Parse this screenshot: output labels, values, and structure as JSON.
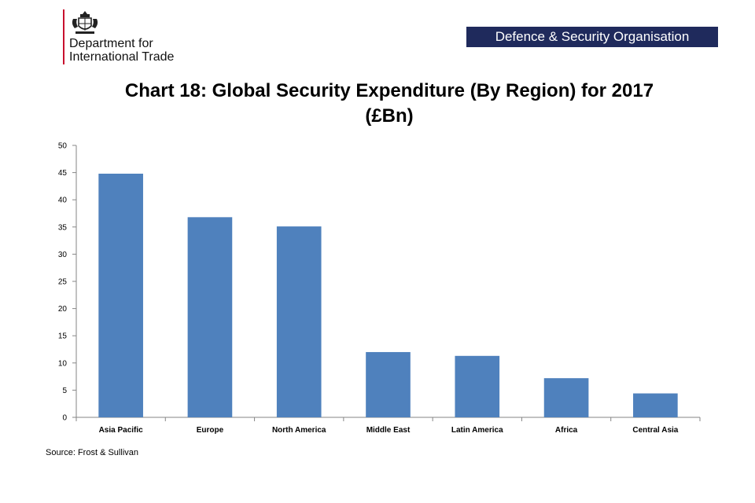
{
  "header": {
    "org_line1": "Department for",
    "org_line2": "International Trade",
    "banner": "Defence & Security Organisation",
    "crest_icon": "royal-crest-icon",
    "rule_color": "#c8102e",
    "banner_color": "#1f2a5c"
  },
  "chart_data": {
    "type": "bar",
    "title_line1": "Chart 18: Global Security Expenditure (By Region) for 2017",
    "title_line2": "(£Bn)",
    "categories": [
      "Asia Pacific",
      "Europe",
      "North America",
      "Middle East",
      "Latin America",
      "Africa",
      "Central Asia"
    ],
    "values": [
      44.8,
      36.8,
      35.1,
      12.0,
      11.3,
      7.2,
      4.4
    ],
    "ylim": [
      0,
      50
    ],
    "yticks": [
      "0",
      "5",
      "10",
      "15",
      "20",
      "25",
      "30",
      "35",
      "40",
      "45",
      "50"
    ],
    "bar_color": "#4f81bd",
    "grid": false,
    "legend": "none"
  },
  "footer": {
    "source": "Source: Frost & Sullivan"
  }
}
